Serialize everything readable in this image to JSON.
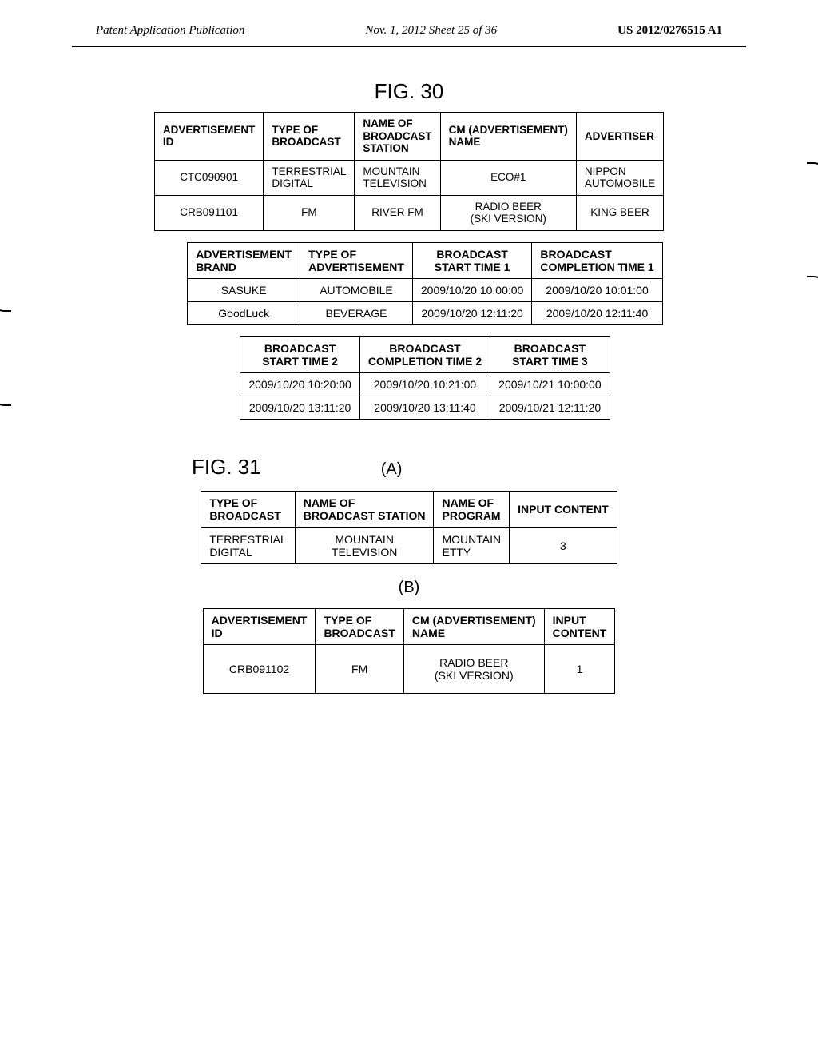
{
  "header": {
    "left": "Patent Application Publication",
    "center": "Nov. 1, 2012  Sheet 25 of 36",
    "right": "US 2012/0276515 A1"
  },
  "fig30": {
    "label": "FIG. 30",
    "tableA": {
      "headers": [
        "ADVERTISEMENT\nID",
        "TYPE OF\nBROADCAST",
        "NAME OF\nBROADCAST\nSTATION",
        "CM (ADVERTISEMENT)\nNAME",
        "ADVERTISER"
      ],
      "rows": [
        [
          "CTC090901",
          "TERRESTRIAL\nDIGITAL",
          "MOUNTAIN\nTELEVISION",
          "ECO#1",
          "NIPPON\nAUTOMOBILE"
        ],
        [
          "CRB091101",
          "FM",
          "RIVER FM",
          "RADIO BEER\n(SKI VERSION)",
          "KING BEER"
        ]
      ]
    },
    "tableB": {
      "headers": [
        "ADVERTISEMENT\nBRAND",
        "TYPE OF\nADVERTISEMENT",
        "BROADCAST\nSTART TIME 1",
        "BROADCAST\nCOMPLETION TIME 1"
      ],
      "rows": [
        [
          "SASUKE",
          "AUTOMOBILE",
          "2009/10/20 10:00:00",
          "2009/10/20 10:01:00"
        ],
        [
          "GoodLuck",
          "BEVERAGE",
          "2009/10/20 12:11:20",
          "2009/10/20 12:11:40"
        ]
      ]
    },
    "tableC": {
      "headers": [
        "BROADCAST\nSTART TIME 2",
        "BROADCAST\nCOMPLETION TIME 2",
        "BROADCAST\nSTART TIME 3"
      ],
      "rows": [
        [
          "2009/10/20 10:20:00",
          "2009/10/20 10:21:00",
          "2009/10/21 10:00:00"
        ],
        [
          "2009/10/20 13:11:20",
          "2009/10/20 13:11:40",
          "2009/10/21 12:11:20"
        ]
      ]
    }
  },
  "fig31": {
    "label": "FIG. 31",
    "subA": "(A)",
    "subB": "(B)",
    "tableA": {
      "headers": [
        "TYPE OF\nBROADCAST",
        "NAME OF\nBROADCAST STATION",
        "NAME OF\nPROGRAM",
        "INPUT CONTENT"
      ],
      "rows": [
        [
          "TERRESTRIAL\nDIGITAL",
          "MOUNTAIN\nTELEVISION",
          "MOUNTAIN\nETTY",
          "3"
        ]
      ]
    },
    "tableB": {
      "headers": [
        "ADVERTISEMENT\nID",
        "TYPE OF\nBROADCAST",
        "CM (ADVERTISEMENT)\nNAME",
        "INPUT\nCONTENT"
      ],
      "rows": [
        [
          "CRB091102",
          "FM",
          "RADIO BEER\n(SKI VERSION)",
          "1"
        ]
      ]
    }
  }
}
